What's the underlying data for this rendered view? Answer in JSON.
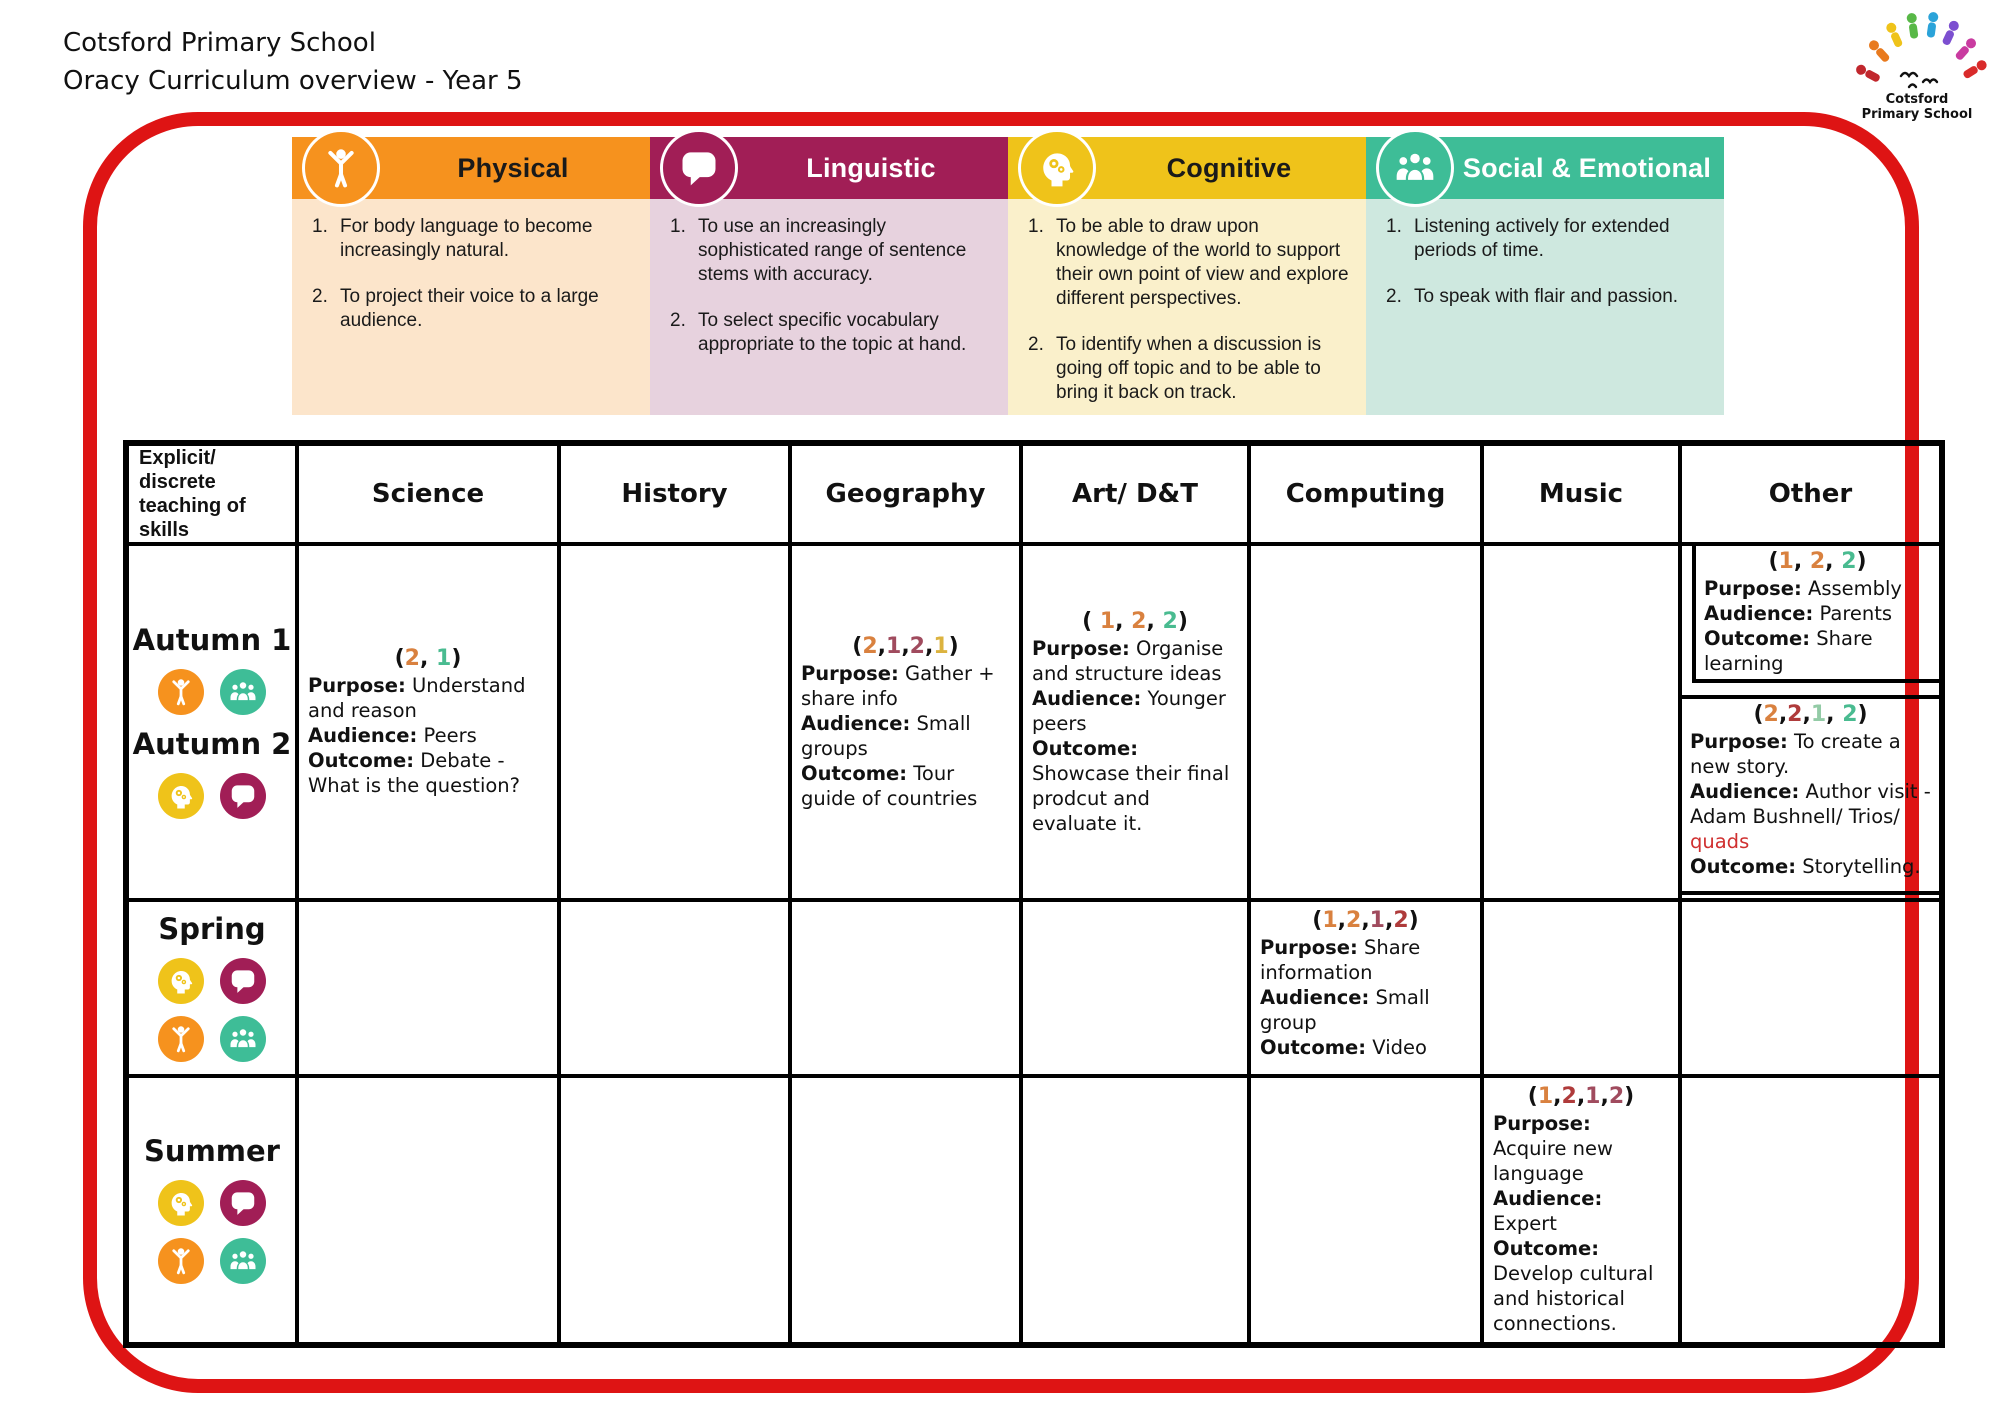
{
  "header": {
    "line1": "Cotsford Primary School",
    "line2": "Oracy Curriculum overview - Year 5"
  },
  "logo": {
    "caption_line1": "Cotsford",
    "caption_line2": "Primary School"
  },
  "palette": {
    "or": "#D9813F",
    "ma": "#A04B5E",
    "go": "#DCB33F",
    "gr": "#49BB90",
    "lg": "#93CBA6",
    "rd": "#AF3B3B",
    "qr": "#D03030"
  },
  "strand_colors": {
    "physical": "#F6921E",
    "linguistic": "#A11E56",
    "cognitive": "#EFC31A",
    "social": "#3EBD97"
  },
  "strands": [
    {
      "name": "Physical",
      "glyph": "physical",
      "icon": "person-arms-raised-icon",
      "header_bg": "#F6921E",
      "body_bg": "#FCE5CB",
      "title_color": "#1A1A1A",
      "items": [
        "For body language to become increasingly natural.",
        "To project their voice to a large audience."
      ]
    },
    {
      "name": "Linguistic",
      "glyph": "linguistic",
      "icon": "speech-bubble-icon",
      "header_bg": "#A11E56",
      "body_bg": "#E7D2DE",
      "title_color": "#FFFFFF",
      "items": [
        "To use an increasingly sophisticated range of sentence stems with accuracy.",
        "To select specific vocabulary appropriate to the topic at hand."
      ]
    },
    {
      "name": "Cognitive",
      "glyph": "cognitive",
      "icon": "head-gears-icon",
      "header_bg": "#EFC31A",
      "body_bg": "#FAF0CB",
      "title_color": "#1A1A1A",
      "items": [
        "To be able to draw upon knowledge of the world to support their own point of view and explore different perspectives.",
        "To identify when a discussion is going off topic and to be able to bring it back on track."
      ]
    },
    {
      "name": "Social & Emotional",
      "glyph": "social",
      "icon": "group-people-icon",
      "header_bg": "#3EBD97",
      "body_bg": "#CEE8DF",
      "title_color": "#FFFFFF",
      "items": [
        "Listening actively for extended periods of time.",
        "To speak with flair and passion."
      ]
    }
  ],
  "table": {
    "corner": "Explicit/ discrete teaching of skills",
    "columns": [
      "Science",
      "History",
      "Geography",
      "Art/ D&T",
      "Computing",
      "Music",
      "Other"
    ],
    "column_keys": [
      "science",
      "history",
      "geography",
      "art_dt",
      "computing",
      "music",
      "other"
    ],
    "rows": [
      {
        "key": "autumn",
        "season": {
          "groups": [
            {
              "label": "Autumn 1",
              "icons": [
                "physical",
                "social"
              ]
            },
            {
              "label": "Autumn 2",
              "icons": [
                "cognitive",
                "linguistic"
              ]
            }
          ]
        },
        "cells": {
          "science": {
            "valign": "middle",
            "code": [
              {
                "t": "("
              },
              {
                "t": "2",
                "c": "or"
              },
              {
                "t": ", "
              },
              {
                "t": "1",
                "c": "gr"
              },
              {
                "t": ")"
              }
            ],
            "paras": [
              [
                {
                  "t": "Purpose:",
                  "b": 1
                },
                {
                  "t": " Understand and reason"
                }
              ],
              [
                {
                  "t": "Audience:",
                  "b": 1
                },
                {
                  "t": " Peers"
                }
              ],
              [
                {
                  "t": "Outcome:",
                  "b": 1
                },
                {
                  "t": " Debate - What is the question?"
                }
              ]
            ]
          },
          "geography": {
            "valign": "middle",
            "code": [
              {
                "t": "("
              },
              {
                "t": "2",
                "c": "or"
              },
              {
                "t": ","
              },
              {
                "t": "1",
                "c": "ma"
              },
              {
                "t": ","
              },
              {
                "t": "2",
                "c": "ma"
              },
              {
                "t": ","
              },
              {
                "t": "1",
                "c": "go"
              },
              {
                "t": ")"
              }
            ],
            "paras": [
              [
                {
                  "t": "Purpose:",
                  "b": 1
                },
                {
                  "t": " Gather + share info"
                }
              ],
              [
                {
                  "t": "Audience:",
                  "b": 1
                },
                {
                  "t": " Small groups"
                }
              ],
              [
                {
                  "t": "Outcome:",
                  "b": 1
                },
                {
                  "t": " Tour guide of countries"
                }
              ]
            ]
          },
          "art_dt": {
            "valign": "middle",
            "code": [
              {
                "t": "( "
              },
              {
                "t": "1",
                "c": "or"
              },
              {
                "t": ", "
              },
              {
                "t": "2",
                "c": "or"
              },
              {
                "t": ", "
              },
              {
                "t": "2",
                "c": "gr"
              },
              {
                "t": ")"
              }
            ],
            "paras": [
              [
                {
                  "t": "Purpose:",
                  "b": 1
                },
                {
                  "t": " Organise and structure ideas"
                }
              ],
              [
                {
                  "t": "Audience:",
                  "b": 1
                },
                {
                  "t": " Younger peers"
                }
              ],
              [
                {
                  "t": "Outcome:",
                  "b": 1
                },
                {
                  "t": " Showcase their final prodcut and evaluate it."
                }
              ]
            ]
          },
          "other": {
            "boxes": [
              {
                "code": [
                  {
                    "t": "("
                  },
                  {
                    "t": "1",
                    "c": "or"
                  },
                  {
                    "t": ", "
                  },
                  {
                    "t": "2",
                    "c": "or"
                  },
                  {
                    "t": ", "
                  },
                  {
                    "t": "2",
                    "c": "gr"
                  },
                  {
                    "t": ")"
                  }
                ],
                "paras": [
                  [
                    {
                      "t": "Purpose:",
                      "b": 1
                    },
                    {
                      "t": " Assembly"
                    }
                  ],
                  [
                    {
                      "t": "Audience:",
                      "b": 1
                    },
                    {
                      "t": " Parents"
                    }
                  ],
                  [
                    {
                      "t": "Outcome:",
                      "b": 1
                    },
                    {
                      "t": " Share learning"
                    }
                  ]
                ]
              },
              {
                "code": [
                  {
                    "t": "("
                  },
                  {
                    "t": "2",
                    "c": "or"
                  },
                  {
                    "t": ","
                  },
                  {
                    "t": "2",
                    "c": "rd"
                  },
                  {
                    "t": ","
                  },
                  {
                    "t": "1",
                    "c": "lg"
                  },
                  {
                    "t": ", "
                  },
                  {
                    "t": "2",
                    "c": "gr"
                  },
                  {
                    "t": ")"
                  }
                ],
                "paras": [
                  [
                    {
                      "t": "Purpose:",
                      "b": 1
                    },
                    {
                      "t": " To create a new story."
                    }
                  ],
                  [
                    {
                      "t": "Audience:",
                      "b": 1
                    },
                    {
                      "t": " Author visit - Adam Bushnell/ Trios/ "
                    },
                    {
                      "t": "quads",
                      "c": "qr"
                    }
                  ],
                  [
                    {
                      "t": "Outcome:",
                      "b": 1
                    },
                    {
                      "t": " Storytelling."
                    }
                  ]
                ]
              }
            ]
          }
        }
      },
      {
        "key": "spring",
        "season": {
          "groups": [
            {
              "label": "Spring",
              "icons": [
                "cognitive",
                "linguistic",
                "physical",
                "social"
              ]
            }
          ]
        },
        "cells": {
          "computing": {
            "valign": "top",
            "code": [
              {
                "t": "("
              },
              {
                "t": "1",
                "c": "or"
              },
              {
                "t": ","
              },
              {
                "t": "2",
                "c": "or"
              },
              {
                "t": ","
              },
              {
                "t": "1",
                "c": "ma"
              },
              {
                "t": ","
              },
              {
                "t": "2",
                "c": "rd"
              },
              {
                "t": ")"
              }
            ],
            "paras": [
              [
                {
                  "t": "Purpose:",
                  "b": 1
                },
                {
                  "t": " Share information"
                }
              ],
              [
                {
                  "t": "Audience:",
                  "b": 1
                },
                {
                  "t": " Small group"
                }
              ],
              [
                {
                  "t": "Outcome:",
                  "b": 1
                },
                {
                  "t": " Video"
                }
              ]
            ]
          }
        }
      },
      {
        "key": "summer",
        "season": {
          "groups": [
            {
              "label": "Summer",
              "icons": [
                "cognitive",
                "linguistic",
                "physical",
                "social"
              ]
            }
          ]
        },
        "cells": {
          "music": {
            "valign": "top",
            "code": [
              {
                "t": "("
              },
              {
                "t": "1",
                "c": "or"
              },
              {
                "t": ","
              },
              {
                "t": "2",
                "c": "rd"
              },
              {
                "t": ","
              },
              {
                "t": "1",
                "c": "ma"
              },
              {
                "t": ","
              },
              {
                "t": "2",
                "c": "ma"
              },
              {
                "t": ")"
              }
            ],
            "paras": [
              [
                {
                  "t": "Purpose:",
                  "b": 1
                },
                {
                  "t": " Acquire new language"
                }
              ],
              [
                {
                  "t": "Audience:",
                  "b": 1
                },
                {
                  "t": " Expert"
                }
              ],
              [
                {
                  "t": "Outcome:",
                  "b": 1
                },
                {
                  "t": " Develop cultural and historical connections."
                }
              ]
            ]
          }
        }
      }
    ]
  }
}
